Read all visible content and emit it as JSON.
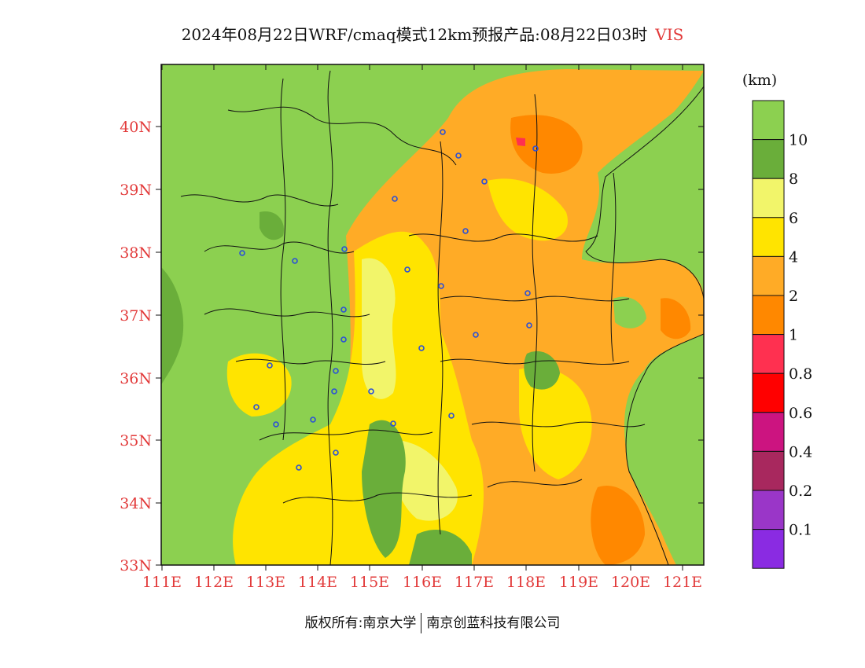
{
  "title": {
    "main": "2024年08月22日WRF/cmaq模式12km预报产品:08月22日03时",
    "variable": "VIS"
  },
  "axes": {
    "lat_labels": [
      "40N",
      "39N",
      "38N",
      "37N",
      "36N",
      "35N",
      "34N",
      "33N"
    ],
    "lon_labels": [
      "111E",
      "112E",
      "113E",
      "114E",
      "115E",
      "116E",
      "117E",
      "118E",
      "119E",
      "120E",
      "121E"
    ],
    "label_color": "#e23a3a"
  },
  "legend": {
    "unit": "(km)",
    "colors": [
      "#8cd050",
      "#6aae3a",
      "#f2f56a",
      "#ffe400",
      "#ffab26",
      "#ff8800",
      "#ff3050",
      "#ff0000",
      "#cc1480",
      "#a8285e",
      "#9a36c8",
      "#8a2be2"
    ],
    "labels": [
      "10",
      "8",
      "6",
      "4",
      "2",
      "1",
      "0.8",
      "0.6",
      "0.4",
      "0.2",
      "0.1"
    ]
  },
  "footer": {
    "copyright": "版权所有:南京大学",
    "company": "南京创蓝科技有限公司"
  }
}
